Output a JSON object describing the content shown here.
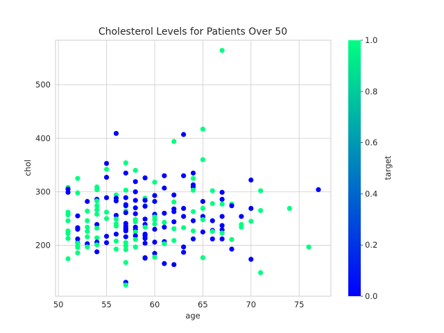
{
  "chart_data": {
    "type": "scatter",
    "title": "Cholesterol Levels for Patients Over 50",
    "xlabel": "age",
    "ylabel": "chol",
    "xlim": [
      49.7,
      78.3
    ],
    "ylim": [
      105,
      583
    ],
    "xticks": [
      50,
      55,
      60,
      65,
      70,
      75
    ],
    "yticks": [
      200,
      300,
      400,
      500
    ],
    "grid": true,
    "colorbar": {
      "label": "target",
      "range": [
        0.0,
        1.0
      ],
      "ticks": [
        "0.0",
        "0.2",
        "0.4",
        "0.6",
        "0.8",
        "1.0"
      ],
      "tick_values": [
        0.0,
        0.2,
        0.4,
        0.6,
        0.8,
        1.0
      ],
      "colormap": "winter",
      "color_low": "#0000ff",
      "color_high": "#00ff80"
    },
    "points": [
      {
        "x": 51,
        "y": 308,
        "target": 1
      },
      {
        "x": 51,
        "y": 305,
        "target": 0
      },
      {
        "x": 51,
        "y": 299,
        "target": 0
      },
      {
        "x": 51,
        "y": 262,
        "target": 1
      },
      {
        "x": 51,
        "y": 257,
        "target": 1
      },
      {
        "x": 51,
        "y": 246,
        "target": 1
      },
      {
        "x": 51,
        "y": 227,
        "target": 1
      },
      {
        "x": 51,
        "y": 222,
        "target": 1
      },
      {
        "x": 51,
        "y": 213,
        "target": 1
      },
      {
        "x": 51,
        "y": 175,
        "target": 1
      },
      {
        "x": 52,
        "y": 325,
        "target": 1
      },
      {
        "x": 52,
        "y": 298,
        "target": 1
      },
      {
        "x": 52,
        "y": 255,
        "target": 0
      },
      {
        "x": 52,
        "y": 233,
        "target": 0
      },
      {
        "x": 52,
        "y": 230,
        "target": 0
      },
      {
        "x": 52,
        "y": 212,
        "target": 0
      },
      {
        "x": 52,
        "y": 205,
        "target": 0
      },
      {
        "x": 52,
        "y": 204,
        "target": 1
      },
      {
        "x": 52,
        "y": 199,
        "target": 1
      },
      {
        "x": 52,
        "y": 196,
        "target": 1
      },
      {
        "x": 52,
        "y": 186,
        "target": 1
      },
      {
        "x": 53,
        "y": 282,
        "target": 0
      },
      {
        "x": 53,
        "y": 264,
        "target": 1
      },
      {
        "x": 53,
        "y": 246,
        "target": 1
      },
      {
        "x": 53,
        "y": 234,
        "target": 1
      },
      {
        "x": 53,
        "y": 226,
        "target": 1
      },
      {
        "x": 53,
        "y": 216,
        "target": 1
      },
      {
        "x": 53,
        "y": 203,
        "target": 0
      },
      {
        "x": 53,
        "y": 197,
        "target": 1
      },
      {
        "x": 54,
        "y": 309,
        "target": 1
      },
      {
        "x": 54,
        "y": 304,
        "target": 1
      },
      {
        "x": 54,
        "y": 286,
        "target": 0
      },
      {
        "x": 54,
        "y": 283,
        "target": 1
      },
      {
        "x": 54,
        "y": 274,
        "target": 1
      },
      {
        "x": 54,
        "y": 266,
        "target": 1
      },
      {
        "x": 54,
        "y": 258,
        "target": 1
      },
      {
        "x": 54,
        "y": 239,
        "target": 0
      },
      {
        "x": 54,
        "y": 232,
        "target": 1
      },
      {
        "x": 54,
        "y": 214,
        "target": 1
      },
      {
        "x": 54,
        "y": 206,
        "target": 0
      },
      {
        "x": 54,
        "y": 201,
        "target": 1
      },
      {
        "x": 54,
        "y": 188,
        "target": 0
      },
      {
        "x": 55,
        "y": 353,
        "target": 0
      },
      {
        "x": 55,
        "y": 342,
        "target": 1
      },
      {
        "x": 55,
        "y": 327,
        "target": 0
      },
      {
        "x": 55,
        "y": 289,
        "target": 0
      },
      {
        "x": 55,
        "y": 262,
        "target": 1
      },
      {
        "x": 55,
        "y": 250,
        "target": 1
      },
      {
        "x": 55,
        "y": 217,
        "target": 0
      },
      {
        "x": 55,
        "y": 205,
        "target": 0
      },
      {
        "x": 56,
        "y": 409,
        "target": 0
      },
      {
        "x": 56,
        "y": 294,
        "target": 1
      },
      {
        "x": 56,
        "y": 288,
        "target": 0
      },
      {
        "x": 56,
        "y": 283,
        "target": 0
      },
      {
        "x": 56,
        "y": 256,
        "target": 0
      },
      {
        "x": 56,
        "y": 249,
        "target": 1
      },
      {
        "x": 56,
        "y": 240,
        "target": 1
      },
      {
        "x": 56,
        "y": 236,
        "target": 1
      },
      {
        "x": 56,
        "y": 221,
        "target": 0
      },
      {
        "x": 56,
        "y": 208,
        "target": 1
      },
      {
        "x": 56,
        "y": 193,
        "target": 1
      },
      {
        "x": 57,
        "y": 354,
        "target": 1
      },
      {
        "x": 57,
        "y": 335,
        "target": 0
      },
      {
        "x": 57,
        "y": 303,
        "target": 1
      },
      {
        "x": 57,
        "y": 289,
        "target": 0
      },
      {
        "x": 57,
        "y": 276,
        "target": 0
      },
      {
        "x": 57,
        "y": 274,
        "target": 0
      },
      {
        "x": 57,
        "y": 264,
        "target": 1
      },
      {
        "x": 57,
        "y": 261,
        "target": 0
      },
      {
        "x": 57,
        "y": 241,
        "target": 0
      },
      {
        "x": 57,
        "y": 236,
        "target": 0
      },
      {
        "x": 57,
        "y": 232,
        "target": 0
      },
      {
        "x": 57,
        "y": 229,
        "target": 0
      },
      {
        "x": 57,
        "y": 227,
        "target": 0
      },
      {
        "x": 57,
        "y": 216,
        "target": 0
      },
      {
        "x": 57,
        "y": 205,
        "target": 1
      },
      {
        "x": 57,
        "y": 199,
        "target": 1
      },
      {
        "x": 57,
        "y": 192,
        "target": 1
      },
      {
        "x": 57,
        "y": 168,
        "target": 1
      },
      {
        "x": 57,
        "y": 131,
        "target": 0
      },
      {
        "x": 57,
        "y": 126,
        "target": 1
      },
      {
        "x": 58,
        "y": 340,
        "target": 1
      },
      {
        "x": 58,
        "y": 319,
        "target": 0
      },
      {
        "x": 58,
        "y": 300,
        "target": 0
      },
      {
        "x": 58,
        "y": 284,
        "target": 0
      },
      {
        "x": 58,
        "y": 270,
        "target": 0
      },
      {
        "x": 58,
        "y": 259,
        "target": 0
      },
      {
        "x": 58,
        "y": 248,
        "target": 1
      },
      {
        "x": 58,
        "y": 244,
        "target": 1
      },
      {
        "x": 58,
        "y": 234,
        "target": 0
      },
      {
        "x": 58,
        "y": 230,
        "target": 0
      },
      {
        "x": 58,
        "y": 225,
        "target": 1
      },
      {
        "x": 58,
        "y": 218,
        "target": 0
      },
      {
        "x": 58,
        "y": 211,
        "target": 1
      },
      {
        "x": 58,
        "y": 197,
        "target": 1
      },
      {
        "x": 59,
        "y": 326,
        "target": 0
      },
      {
        "x": 59,
        "y": 288,
        "target": 1
      },
      {
        "x": 59,
        "y": 284,
        "target": 0
      },
      {
        "x": 59,
        "y": 274,
        "target": 1
      },
      {
        "x": 59,
        "y": 273,
        "target": 0
      },
      {
        "x": 59,
        "y": 249,
        "target": 0
      },
      {
        "x": 59,
        "y": 239,
        "target": 0
      },
      {
        "x": 59,
        "y": 234,
        "target": 1
      },
      {
        "x": 59,
        "y": 221,
        "target": 0
      },
      {
        "x": 59,
        "y": 218,
        "target": 0
      },
      {
        "x": 59,
        "y": 213,
        "target": 0
      },
      {
        "x": 59,
        "y": 204,
        "target": 0
      },
      {
        "x": 59,
        "y": 177,
        "target": 0
      },
      {
        "x": 59,
        "y": 176,
        "target": 0
      },
      {
        "x": 60,
        "y": 318,
        "target": 1
      },
      {
        "x": 60,
        "y": 293,
        "target": 0
      },
      {
        "x": 60,
        "y": 282,
        "target": 0
      },
      {
        "x": 60,
        "y": 258,
        "target": 0
      },
      {
        "x": 60,
        "y": 253,
        "target": 1
      },
      {
        "x": 60,
        "y": 248,
        "target": 1
      },
      {
        "x": 60,
        "y": 240,
        "target": 1
      },
      {
        "x": 60,
        "y": 230,
        "target": 0
      },
      {
        "x": 60,
        "y": 206,
        "target": 0
      },
      {
        "x": 60,
        "y": 185,
        "target": 0
      },
      {
        "x": 60,
        "y": 178,
        "target": 1
      },
      {
        "x": 61,
        "y": 330,
        "target": 0
      },
      {
        "x": 61,
        "y": 307,
        "target": 0
      },
      {
        "x": 61,
        "y": 260,
        "target": 0
      },
      {
        "x": 61,
        "y": 243,
        "target": 1
      },
      {
        "x": 61,
        "y": 234,
        "target": 0
      },
      {
        "x": 61,
        "y": 207,
        "target": 0
      },
      {
        "x": 61,
        "y": 203,
        "target": 1
      },
      {
        "x": 61,
        "y": 166,
        "target": 0
      },
      {
        "x": 62,
        "y": 394,
        "target": 1
      },
      {
        "x": 62,
        "y": 294,
        "target": 0
      },
      {
        "x": 62,
        "y": 281,
        "target": 1
      },
      {
        "x": 62,
        "y": 268,
        "target": 0
      },
      {
        "x": 62,
        "y": 263,
        "target": 0
      },
      {
        "x": 62,
        "y": 244,
        "target": 0
      },
      {
        "x": 62,
        "y": 231,
        "target": 1
      },
      {
        "x": 62,
        "y": 209,
        "target": 1
      },
      {
        "x": 62,
        "y": 164,
        "target": 0
      },
      {
        "x": 63,
        "y": 407,
        "target": 0
      },
      {
        "x": 63,
        "y": 330,
        "target": 0
      },
      {
        "x": 63,
        "y": 269,
        "target": 0
      },
      {
        "x": 63,
        "y": 254,
        "target": 0
      },
      {
        "x": 63,
        "y": 233,
        "target": 1
      },
      {
        "x": 63,
        "y": 197,
        "target": 0
      },
      {
        "x": 63,
        "y": 187,
        "target": 0
      },
      {
        "x": 64,
        "y": 335,
        "target": 0
      },
      {
        "x": 64,
        "y": 325,
        "target": 1
      },
      {
        "x": 64,
        "y": 313,
        "target": 0
      },
      {
        "x": 64,
        "y": 309,
        "target": 0
      },
      {
        "x": 64,
        "y": 303,
        "target": 1
      },
      {
        "x": 64,
        "y": 263,
        "target": 1
      },
      {
        "x": 64,
        "y": 246,
        "target": 0
      },
      {
        "x": 64,
        "y": 227,
        "target": 1
      },
      {
        "x": 64,
        "y": 212,
        "target": 0
      },
      {
        "x": 65,
        "y": 417,
        "target": 1
      },
      {
        "x": 65,
        "y": 360,
        "target": 1
      },
      {
        "x": 65,
        "y": 282,
        "target": 0
      },
      {
        "x": 65,
        "y": 269,
        "target": 1
      },
      {
        "x": 65,
        "y": 254,
        "target": 0
      },
      {
        "x": 65,
        "y": 248,
        "target": 1
      },
      {
        "x": 65,
        "y": 225,
        "target": 0
      },
      {
        "x": 65,
        "y": 177,
        "target": 1
      },
      {
        "x": 66,
        "y": 302,
        "target": 1
      },
      {
        "x": 66,
        "y": 278,
        "target": 1
      },
      {
        "x": 66,
        "y": 246,
        "target": 0
      },
      {
        "x": 66,
        "y": 228,
        "target": 0
      },
      {
        "x": 66,
        "y": 226,
        "target": 1
      },
      {
        "x": 66,
        "y": 212,
        "target": 0
      },
      {
        "x": 67,
        "y": 564,
        "target": 1
      },
      {
        "x": 67,
        "y": 299,
        "target": 0
      },
      {
        "x": 67,
        "y": 286,
        "target": 0
      },
      {
        "x": 67,
        "y": 277,
        "target": 1
      },
      {
        "x": 67,
        "y": 254,
        "target": 0
      },
      {
        "x": 67,
        "y": 237,
        "target": 0
      },
      {
        "x": 67,
        "y": 229,
        "target": 0
      },
      {
        "x": 67,
        "y": 223,
        "target": 1
      },
      {
        "x": 67,
        "y": 212,
        "target": 0
      },
      {
        "x": 68,
        "y": 277,
        "target": 1
      },
      {
        "x": 68,
        "y": 274,
        "target": 0
      },
      {
        "x": 68,
        "y": 211,
        "target": 1
      },
      {
        "x": 68,
        "y": 193,
        "target": 0
      },
      {
        "x": 69,
        "y": 254,
        "target": 0
      },
      {
        "x": 69,
        "y": 239,
        "target": 1
      },
      {
        "x": 69,
        "y": 234,
        "target": 1
      },
      {
        "x": 70,
        "y": 322,
        "target": 0
      },
      {
        "x": 70,
        "y": 269,
        "target": 0
      },
      {
        "x": 70,
        "y": 245,
        "target": 1
      },
      {
        "x": 70,
        "y": 174,
        "target": 0
      },
      {
        "x": 71,
        "y": 302,
        "target": 1
      },
      {
        "x": 71,
        "y": 265,
        "target": 1
      },
      {
        "x": 71,
        "y": 149,
        "target": 1
      },
      {
        "x": 74,
        "y": 269,
        "target": 1
      },
      {
        "x": 76,
        "y": 197,
        "target": 1
      },
      {
        "x": 77,
        "y": 304,
        "target": 0
      }
    ]
  }
}
